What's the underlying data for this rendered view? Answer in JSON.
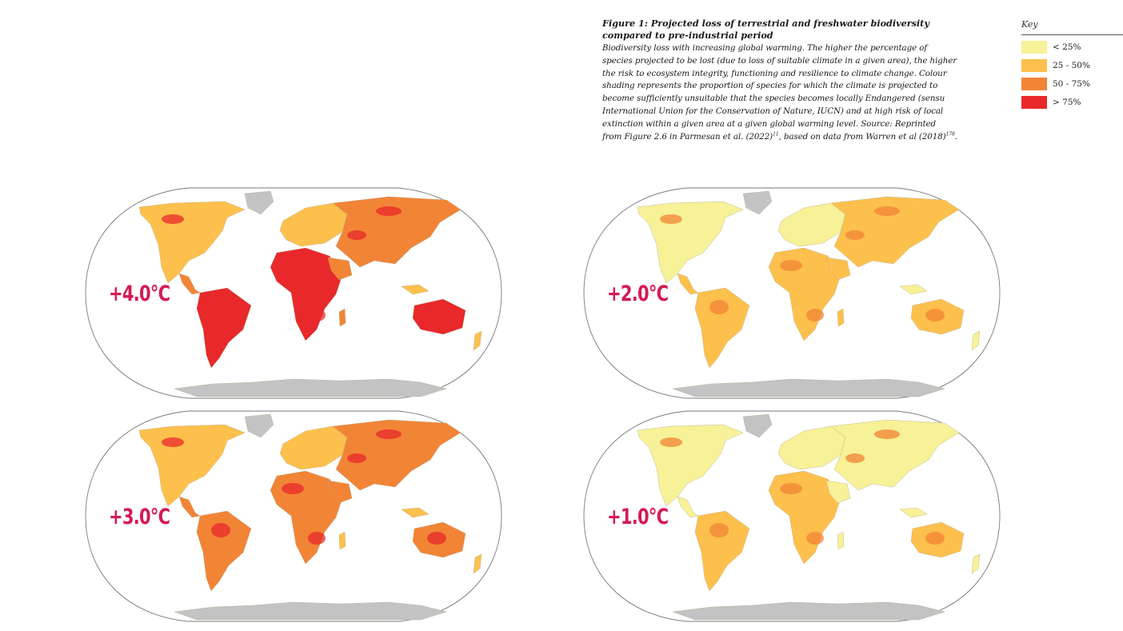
{
  "caption": {
    "title_line1": "Figure 1: Projected loss of terrestrial and freshwater biodiversity",
    "title_line2": "compared to pre-industrial period",
    "body_line1": "Biodiversity loss with increasing global warming. The higher the percentage of",
    "body_line2": "species projected to be lost (due to loss of suitable climate in a given area), the higher",
    "body_line3": "the risk to ecosystem integrity, functioning and resilience to climate change. Colour",
    "body_line4": "shading represents the proportion of species for which the climate is projected to",
    "body_line5": "become sufficiently unsuitable that the species becomes locally Endangered (sensu",
    "body_line6": "International Union for the Conservation of Nature, IUCN) and at high risk of local",
    "body_line7": "extinction within a given area at a given global warming level. Source: Reprinted",
    "body_line8a": "from Figure 2.6 in Parmesan et al. (2022)",
    "body_ref1": "11",
    "body_line8b": ", based on data from Warren et al (2018)",
    "body_ref2": "178",
    "body_line8c": "."
  },
  "key": {
    "title": "Key",
    "items": [
      {
        "label": "< 25%",
        "color": "#f7f197"
      },
      {
        "label": "25 - 50%",
        "color": "#fdc04c"
      },
      {
        "label": "50 - 75%",
        "color": "#f28436"
      },
      {
        "label": "> 75%",
        "color": "#e8282b"
      }
    ]
  },
  "maps": [
    {
      "label": "+4.0°C",
      "intensity": 0.9
    },
    {
      "label": "+2.0°C",
      "intensity": 0.45
    },
    {
      "label": "+3.0°C",
      "intensity": 0.72
    },
    {
      "label": "+1.0°C",
      "intensity": 0.3
    }
  ],
  "colors": {
    "label": "#d51a55",
    "ice": "#c3c3c3",
    "outline": "#7a7a7a"
  }
}
